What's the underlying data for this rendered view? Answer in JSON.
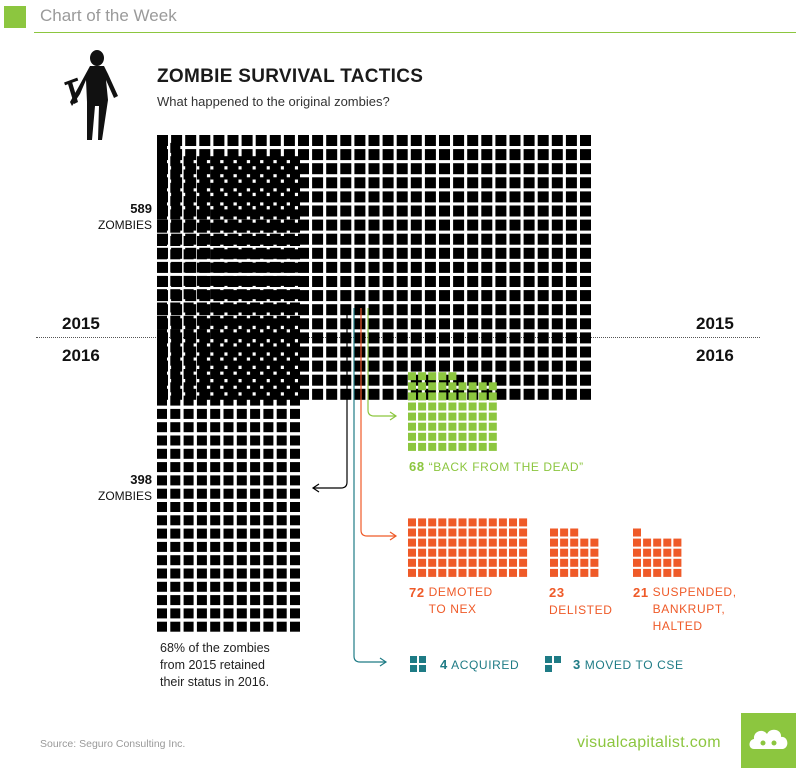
{
  "header": {
    "label": "Chart of the Week",
    "accent_color": "#8cc63f"
  },
  "title": "ZOMBIE SURVIVAL TACTICS",
  "subtitle": "What happened to the original zombies?",
  "year_top_left": "2015",
  "year_top_right": "2015",
  "year_bottom_left": "2016",
  "year_bottom_right": "2016",
  "zombies_2015": {
    "count": "589",
    "label": "ZOMBIES"
  },
  "zombies_2016": {
    "count": "398",
    "label": "ZOMBIES"
  },
  "note_lines": [
    "68% of the zombies",
    "from 2015 retained",
    "their status in 2016."
  ],
  "source": "Source: Seguro Consulting Inc.",
  "brand": "visualcapitalist.com",
  "chart_data": {
    "type": "waffle",
    "title": "ZOMBIE SURVIVAL TACTICS",
    "subtitle": "What happened to the original zombies?",
    "start": {
      "year": "2015",
      "value": 589,
      "label": "ZOMBIES"
    },
    "retained": {
      "year": "2016",
      "value": 398,
      "label": "ZOMBIES"
    },
    "categories": [
      {
        "value": 68,
        "label": "“BACK FROM THE DEAD”",
        "color": "#8cc63f"
      },
      {
        "value": 72,
        "label": "DEMOTED TO NEX",
        "color": "#ef5a28"
      },
      {
        "value": 23,
        "label": "DELISTED",
        "color": "#ef5a28"
      },
      {
        "value": 21,
        "label": "SUSPENDED, BANKRUPT, HALTED",
        "color": "#ef5a28"
      },
      {
        "value": 4,
        "label": "ACQUIRED",
        "color": "#1e7b85"
      },
      {
        "value": 3,
        "label": "MOVED TO CSE",
        "color": "#1e7b85"
      }
    ],
    "colors": {
      "zombie": "#000000",
      "green": "#8cc63f",
      "orange": "#ef5a28",
      "teal": "#1e7b85"
    }
  }
}
